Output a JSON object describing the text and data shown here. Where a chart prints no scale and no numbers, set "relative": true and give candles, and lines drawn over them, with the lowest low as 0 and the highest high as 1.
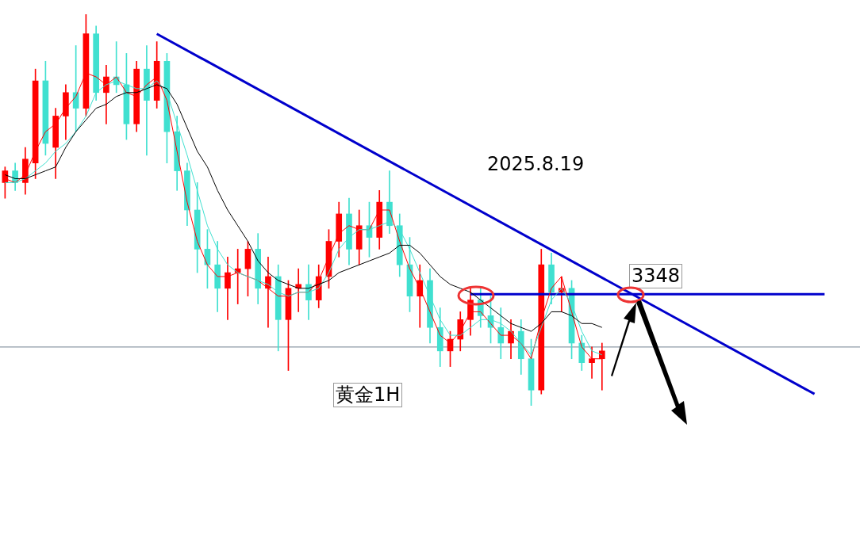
{
  "chart_data": {
    "type": "candlestick",
    "relative": true,
    "categories": [
      null,
      null,
      null,
      null,
      null,
      null,
      null,
      null,
      null,
      null,
      null,
      null,
      null,
      null,
      null,
      null,
      null,
      null,
      null,
      null,
      null,
      null,
      null,
      null,
      null,
      null,
      null,
      null,
      null,
      null,
      null,
      null,
      null,
      null,
      null,
      null,
      null,
      null,
      null,
      null,
      null,
      null,
      null,
      null,
      null,
      null,
      null,
      null,
      null,
      null,
      null,
      null,
      null,
      null,
      null,
      null,
      null,
      null,
      null,
      null,
      null,
      null,
      null,
      null,
      null,
      null,
      null,
      null,
      null,
      null,
      null,
      null,
      null,
      null,
      null,
      null,
      null,
      null,
      null,
      null,
      null,
      null,
      null,
      null,
      null
    ],
    "ohlc": [
      [
        0.57,
        0.61,
        0.53,
        0.6
      ],
      [
        0.6,
        0.62,
        0.55,
        0.57
      ],
      [
        0.57,
        0.66,
        0.54,
        0.63
      ],
      [
        0.62,
        0.86,
        0.58,
        0.83
      ],
      [
        0.83,
        0.88,
        0.64,
        0.67
      ],
      [
        0.66,
        0.76,
        0.58,
        0.74
      ],
      [
        0.74,
        0.82,
        0.68,
        0.8
      ],
      [
        0.8,
        0.92,
        0.7,
        0.76
      ],
      [
        0.76,
        1.0,
        0.74,
        0.95
      ],
      [
        0.95,
        0.97,
        0.78,
        0.8
      ],
      [
        0.8,
        0.87,
        0.72,
        0.84
      ],
      [
        0.84,
        0.93,
        0.8,
        0.82
      ],
      [
        0.82,
        0.9,
        0.68,
        0.72
      ],
      [
        0.72,
        0.88,
        0.7,
        0.86
      ],
      [
        0.86,
        0.92,
        0.64,
        0.78
      ],
      [
        0.78,
        0.93,
        0.76,
        0.88
      ],
      [
        0.88,
        0.9,
        0.62,
        0.7
      ],
      [
        0.7,
        0.74,
        0.55,
        0.6
      ],
      [
        0.6,
        0.62,
        0.46,
        0.5
      ],
      [
        0.5,
        0.57,
        0.34,
        0.4
      ],
      [
        0.4,
        0.45,
        0.3,
        0.36
      ],
      [
        0.36,
        0.42,
        0.24,
        0.3
      ],
      [
        0.3,
        0.38,
        0.22,
        0.34
      ],
      [
        0.34,
        0.4,
        0.26,
        0.35
      ],
      [
        0.35,
        0.42,
        0.28,
        0.4
      ],
      [
        0.4,
        0.44,
        0.26,
        0.3
      ],
      [
        0.3,
        0.38,
        0.2,
        0.33
      ],
      [
        0.33,
        0.36,
        0.14,
        0.22
      ],
      [
        0.22,
        0.32,
        0.09,
        0.3
      ],
      [
        0.3,
        0.35,
        0.24,
        0.31
      ],
      [
        0.31,
        0.36,
        0.22,
        0.27
      ],
      [
        0.27,
        0.36,
        0.25,
        0.33
      ],
      [
        0.33,
        0.45,
        0.3,
        0.42
      ],
      [
        0.42,
        0.52,
        0.38,
        0.49
      ],
      [
        0.49,
        0.53,
        0.36,
        0.4
      ],
      [
        0.4,
        0.5,
        0.36,
        0.46
      ],
      [
        0.46,
        0.52,
        0.38,
        0.43
      ],
      [
        0.43,
        0.55,
        0.4,
        0.52
      ],
      [
        0.52,
        0.6,
        0.44,
        0.46
      ],
      [
        0.46,
        0.49,
        0.33,
        0.36
      ],
      [
        0.36,
        0.43,
        0.24,
        0.28
      ],
      [
        0.28,
        0.36,
        0.2,
        0.32
      ],
      [
        0.32,
        0.35,
        0.16,
        0.2
      ],
      [
        0.2,
        0.25,
        0.1,
        0.14
      ],
      [
        0.14,
        0.19,
        0.1,
        0.17
      ],
      [
        0.17,
        0.24,
        0.14,
        0.22
      ],
      [
        0.22,
        0.3,
        0.18,
        0.27
      ],
      [
        0.27,
        0.3,
        0.2,
        0.23
      ],
      [
        0.23,
        0.28,
        0.16,
        0.2
      ],
      [
        0.2,
        0.25,
        0.12,
        0.16
      ],
      [
        0.16,
        0.22,
        0.12,
        0.19
      ],
      [
        0.19,
        0.22,
        0.08,
        0.12
      ],
      [
        0.12,
        0.17,
        0.0,
        0.04
      ],
      [
        0.04,
        0.4,
        0.03,
        0.36
      ],
      [
        0.36,
        0.39,
        0.26,
        0.29
      ],
      [
        0.29,
        0.33,
        0.24,
        0.3
      ],
      [
        0.3,
        0.32,
        0.12,
        0.16
      ],
      [
        0.16,
        0.18,
        0.09,
        0.11
      ],
      [
        0.11,
        0.15,
        0.07,
        0.12
      ],
      [
        0.12,
        0.16,
        0.04,
        0.14
      ],
      null,
      null,
      null,
      null,
      null,
      null,
      null,
      null,
      null,
      null,
      null,
      null,
      null,
      null,
      null,
      null,
      null,
      null,
      null,
      null,
      null,
      null,
      null,
      null,
      null
    ],
    "colors": [
      "#ff0000",
      "#40e0d0",
      "#ff0000",
      "#ff0000",
      "#40e0d0",
      "#ff0000",
      "#ff0000",
      "#40e0d0",
      "#ff0000",
      "#40e0d0",
      "#ff0000",
      "#40e0d0",
      "#40e0d0",
      "#ff0000",
      "#40e0d0",
      "#ff0000",
      "#40e0d0",
      "#40e0d0",
      "#40e0d0",
      "#40e0d0",
      "#40e0d0",
      "#40e0d0",
      "#ff0000",
      "#ff0000",
      "#ff0000",
      "#40e0d0",
      "#ff0000",
      "#40e0d0",
      "#ff0000",
      "#ff0000",
      "#40e0d0",
      "#ff0000",
      "#ff0000",
      "#ff0000",
      "#40e0d0",
      "#ff0000",
      "#40e0d0",
      "#ff0000",
      "#40e0d0",
      "#40e0d0",
      "#40e0d0",
      "#ff0000",
      "#40e0d0",
      "#40e0d0",
      "#ff0000",
      "#ff0000",
      "#ff0000",
      "#40e0d0",
      "#40e0d0",
      "#40e0d0",
      "#ff0000",
      "#40e0d0",
      "#40e0d0",
      "#ff0000",
      "#40e0d0",
      "#ff0000",
      "#40e0d0",
      "#40e0d0",
      "#ff0000",
      "#ff0000",
      null,
      null,
      null,
      null,
      null,
      null,
      null,
      null,
      null,
      null,
      null,
      null,
      null,
      null,
      null,
      null,
      null,
      null,
      null,
      null,
      null,
      null,
      null,
      null,
      null
    ],
    "series": [
      {
        "type": "line",
        "color": "#000000",
        "values": [
          0.59,
          0.58,
          0.58,
          0.59,
          0.6,
          0.61,
          0.66,
          0.7,
          0.73,
          0.76,
          0.77,
          0.79,
          0.8,
          0.8,
          0.81,
          0.82,
          0.81,
          0.77,
          0.71,
          0.65,
          0.61,
          0.55,
          0.5,
          0.46,
          0.42,
          0.37,
          0.34,
          0.32,
          0.31,
          0.3,
          0.3,
          0.31,
          0.32,
          0.34,
          0.35,
          0.36,
          0.37,
          0.38,
          0.39,
          0.41,
          0.41,
          0.39,
          0.36,
          0.33,
          0.31,
          0.3,
          0.29,
          0.27,
          0.25,
          0.23,
          0.21,
          0.2,
          0.19,
          0.21,
          0.24,
          0.24,
          0.23,
          0.21,
          0.21,
          0.2,
          null,
          null,
          null,
          null,
          null,
          null,
          null,
          null,
          null,
          null,
          null,
          null,
          null,
          null,
          null,
          null,
          null,
          null,
          null,
          null,
          null,
          null,
          null,
          null,
          null
        ]
      },
      {
        "type": "line",
        "color": "#40e0d0",
        "values": [
          0.57,
          0.57,
          0.58,
          0.6,
          0.62,
          0.65,
          0.67,
          0.7,
          0.74,
          0.8,
          0.82,
          0.83,
          0.82,
          0.81,
          0.81,
          0.83,
          0.8,
          0.72,
          0.64,
          0.55,
          0.46,
          0.4,
          0.36,
          0.34,
          0.33,
          0.32,
          0.31,
          0.29,
          0.28,
          0.29,
          0.29,
          0.3,
          0.34,
          0.4,
          0.43,
          0.45,
          0.45,
          0.46,
          0.47,
          0.45,
          0.4,
          0.34,
          0.28,
          0.22,
          0.18,
          0.18,
          0.2,
          0.22,
          0.22,
          0.21,
          0.19,
          0.16,
          0.13,
          0.2,
          0.27,
          0.3,
          0.26,
          0.19,
          0.14,
          0.13,
          null,
          null,
          null,
          null,
          null,
          null,
          null,
          null,
          null,
          null,
          null,
          null,
          null,
          null,
          null,
          null,
          null,
          null,
          null,
          null,
          null,
          null,
          null,
          null,
          null
        ]
      },
      {
        "type": "line",
        "color": "#ff0000",
        "values": [
          0.58,
          0.57,
          0.59,
          0.65,
          0.7,
          0.72,
          0.76,
          0.79,
          0.85,
          0.84,
          0.82,
          0.84,
          0.8,
          0.79,
          0.82,
          0.84,
          0.78,
          0.65,
          0.52,
          0.42,
          0.36,
          0.33,
          0.33,
          0.34,
          0.33,
          0.32,
          0.3,
          0.28,
          0.28,
          0.29,
          0.29,
          0.32,
          0.38,
          0.44,
          0.46,
          0.45,
          0.45,
          0.5,
          0.5,
          0.42,
          0.35,
          0.3,
          0.24,
          0.18,
          0.16,
          0.19,
          0.24,
          0.24,
          0.21,
          0.18,
          0.18,
          0.16,
          0.12,
          0.22,
          0.3,
          0.33,
          0.24,
          0.15,
          0.12,
          0.12,
          null,
          null,
          null,
          null,
          null,
          null,
          null,
          null,
          null,
          null,
          null,
          null,
          null,
          null,
          null,
          null,
          null,
          null,
          null,
          null,
          null,
          null,
          null,
          null,
          null
        ]
      },
      {
        "type": "line",
        "color": "#0000cc",
        "values": [
          null,
          null,
          null,
          null,
          null,
          null,
          null,
          null,
          null,
          null,
          null,
          null,
          null,
          null,
          null,
          0.95,
          null,
          null,
          null,
          null,
          null,
          null,
          null,
          null,
          null,
          null,
          null,
          null,
          null,
          null,
          null,
          null,
          null,
          null,
          null,
          null,
          null,
          null,
          null,
          null,
          null,
          null,
          null,
          null,
          null,
          null,
          null,
          null,
          null,
          null,
          null,
          null,
          null,
          null,
          null,
          null,
          null,
          null,
          null,
          null,
          null,
          null,
          null,
          null,
          null,
          null,
          null,
          null,
          null,
          null,
          null,
          null,
          null,
          null,
          null,
          null,
          null,
          null,
          null,
          null,
          0.03,
          null,
          null,
          null,
          null
        ]
      },
      {
        "type": "line",
        "color": "#0000cc",
        "values": [
          null,
          null,
          null,
          null,
          null,
          null,
          null,
          null,
          null,
          null,
          null,
          null,
          null,
          null,
          null,
          null,
          null,
          null,
          null,
          null,
          null,
          null,
          null,
          null,
          null,
          null,
          null,
          null,
          null,
          null,
          null,
          null,
          null,
          null,
          null,
          null,
          null,
          null,
          null,
          null,
          null,
          null,
          null,
          null,
          null,
          null,
          0.285,
          null,
          null,
          null,
          null,
          null,
          null,
          null,
          null,
          null,
          null,
          null,
          null,
          null,
          null,
          null,
          null,
          null,
          null,
          null,
          null,
          null,
          null,
          null,
          null,
          null,
          null,
          null,
          null,
          null,
          null,
          null,
          null,
          null,
          null,
          0.285,
          null,
          null,
          null
        ]
      }
    ],
    "ref_lines": [
      {
        "axis": "y",
        "value": 0.15,
        "color": "#708090"
      }
    ],
    "annotations": [
      "黄金1H",
      "2025.8.19",
      {
        "text": "3348",
        "y": 0.285
      }
    ]
  }
}
